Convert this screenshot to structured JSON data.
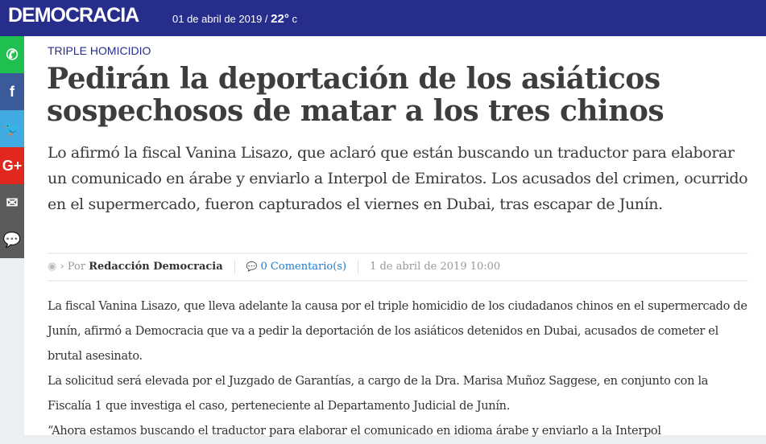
{
  "header": {
    "logo": "DEMOCRACIA",
    "date": "01 de abril de 2019 /",
    "temp": "22°",
    "unit": " c"
  },
  "social": [
    {
      "name": "whatsapp",
      "glyph": "✆",
      "color": "#1fc04f"
    },
    {
      "name": "facebook",
      "glyph": "f",
      "color": "#3b5a9a"
    },
    {
      "name": "twitter",
      "glyph": "🐦",
      "color": "#41abe1"
    },
    {
      "name": "google-plus",
      "glyph": "G+",
      "color": "#e0281f"
    },
    {
      "name": "email",
      "glyph": "✉",
      "color": "#5b5b5b"
    },
    {
      "name": "comment",
      "glyph": "💬",
      "color": "#5b5b5b"
    }
  ],
  "article": {
    "kicker": "TRIPLE HOMICIDIO",
    "title": "Pedirán la deportación de los asiáticos sospechosos de matar a los tres chinos",
    "lead": "Lo afirmó la fiscal Vanina Lisazo, que aclaró que están buscando un traductor para elaborar un comunicado en árabe y enviarlo a Interpol de Emiratos. Los acusados del crimen, ocurrido en el supermercado, fueron capturados el viernes en Dubai, tras escapar de Junín.",
    "meta": {
      "by": "› Por",
      "author": "Redacción Democracia",
      "comments": "0 Comentario(s)",
      "datetime": "1 de abril de 2019 10:00"
    },
    "paragraphs": [
      "La fiscal Vanina Lisazo, que lleva adelante la causa por el triple homicidio de los ciudadanos chinos en el supermercado de Junín, afirmó a Democracia que va a pedir la deportación de los asiáticos detenidos en Dubai, acusados de cometer el brutal asesinato.",
      "La solicitud será elevada por el Juzgado de Garantías, a cargo de la Dra. Marisa Muñoz Saggese, en conjunto con la Fiscalía 1 que investiga el caso, perteneciente al Departamento Judicial de Junín.",
      "“Ahora estamos buscando el traductor para elaborar el comunicado en idioma árabe y enviarlo a la Interpol"
    ]
  }
}
